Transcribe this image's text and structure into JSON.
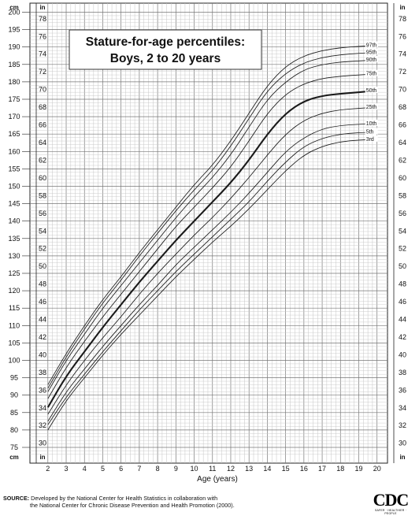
{
  "chart_data": {
    "type": "line",
    "title_line1": "Stature-for-age percentiles:",
    "title_line2": "Boys, 2 to 20 years",
    "xlabel": "Age (years)",
    "left_unit": "cm",
    "right_unit": "in",
    "xlim": [
      1.75,
      20.4
    ],
    "ylim_cm": [
      73,
      200
    ],
    "x_ticks": [
      "2",
      "3",
      "4",
      "5",
      "6",
      "7",
      "8",
      "9",
      "10",
      "11",
      "12",
      "13",
      "14",
      "15",
      "16",
      "17",
      "18",
      "19",
      "20"
    ],
    "cm_ticks": [
      "75",
      "80",
      "85",
      "90",
      "95",
      "100",
      "105",
      "110",
      "115",
      "120",
      "125",
      "130",
      "135",
      "140",
      "145",
      "150",
      "155",
      "160",
      "165",
      "170",
      "175",
      "180",
      "185",
      "190",
      "195",
      "200"
    ],
    "in_ticks": [
      "30",
      "32",
      "34",
      "36",
      "38",
      "40",
      "42",
      "44",
      "46",
      "48",
      "50",
      "52",
      "54",
      "56",
      "58",
      "60",
      "62",
      "64",
      "66",
      "68",
      "70",
      "72",
      "74",
      "76",
      "78"
    ],
    "ages": [
      2,
      3,
      4,
      5,
      6,
      7,
      8,
      9,
      10,
      11,
      12,
      13,
      14,
      15,
      16,
      17,
      18,
      19,
      20
    ],
    "series": [
      {
        "name": "97th",
        "values": [
          93.0,
          102.0,
          110.0,
          117.5,
          124.0,
          131.0,
          137.5,
          144.0,
          150.5,
          156.0,
          163.0,
          171.0,
          179.0,
          184.5,
          187.5,
          189.0,
          189.8,
          190.2,
          190.5
        ]
      },
      {
        "name": "95th",
        "values": [
          92.0,
          101.0,
          109.0,
          116.5,
          123.0,
          130.0,
          136.5,
          143.0,
          149.0,
          154.5,
          161.5,
          169.5,
          177.5,
          182.5,
          185.5,
          187.0,
          187.8,
          188.2,
          188.5
        ]
      },
      {
        "name": "90th",
        "values": [
          91.0,
          100.0,
          107.5,
          115.0,
          121.5,
          128.0,
          134.5,
          141.0,
          147.0,
          152.5,
          159.0,
          167.0,
          175.0,
          180.0,
          183.5,
          185.0,
          185.7,
          186.0,
          186.3
        ]
      },
      {
        "name": "75th",
        "values": [
          89.0,
          98.0,
          105.5,
          112.5,
          119.0,
          125.5,
          132.0,
          138.5,
          144.0,
          149.5,
          155.5,
          163.0,
          171.0,
          176.5,
          179.5,
          181.0,
          181.6,
          182.0,
          182.3
        ]
      },
      {
        "name": "50th",
        "values": [
          86.5,
          95.5,
          102.5,
          109.5,
          116.0,
          122.5,
          128.5,
          134.5,
          140.0,
          145.5,
          151.0,
          157.5,
          165.0,
          171.0,
          174.5,
          176.0,
          176.6,
          177.0,
          177.5
        ]
      },
      {
        "name": "25th",
        "values": [
          84.5,
          93.0,
          100.0,
          106.5,
          112.5,
          119.0,
          125.0,
          130.5,
          136.0,
          141.0,
          146.5,
          152.5,
          159.0,
          165.0,
          169.0,
          171.0,
          172.0,
          172.4,
          172.7
        ]
      },
      {
        "name": "10th",
        "values": [
          82.5,
          91.0,
          97.5,
          104.0,
          110.0,
          116.0,
          121.5,
          127.5,
          132.5,
          137.5,
          142.5,
          148.0,
          154.0,
          160.0,
          164.0,
          166.5,
          167.5,
          167.8,
          168.0
        ]
      },
      {
        "name": "5th",
        "values": [
          81.5,
          89.5,
          96.0,
          102.5,
          108.5,
          114.5,
          120.0,
          125.5,
          130.5,
          135.5,
          140.5,
          145.5,
          151.5,
          157.0,
          161.5,
          163.8,
          165.0,
          165.4,
          165.6
        ]
      },
      {
        "name": "3rd",
        "values": [
          80.0,
          88.5,
          95.0,
          101.5,
          107.5,
          113.0,
          118.5,
          124.0,
          129.0,
          134.0,
          138.5,
          143.5,
          149.0,
          154.5,
          159.0,
          161.5,
          162.8,
          163.3,
          163.5
        ]
      }
    ],
    "grid": true,
    "legend": "inline-right"
  },
  "source": {
    "label": "SOURCE:",
    "line1": "Developed by the National Center for Health Statistics in collaboration with",
    "line2": "the National Center for Chronic Disease Prevention and Health Promotion (2000)."
  },
  "logo": {
    "text": "CDC",
    "tagline": "SAFER · HEALTHIER · PEOPLE"
  }
}
